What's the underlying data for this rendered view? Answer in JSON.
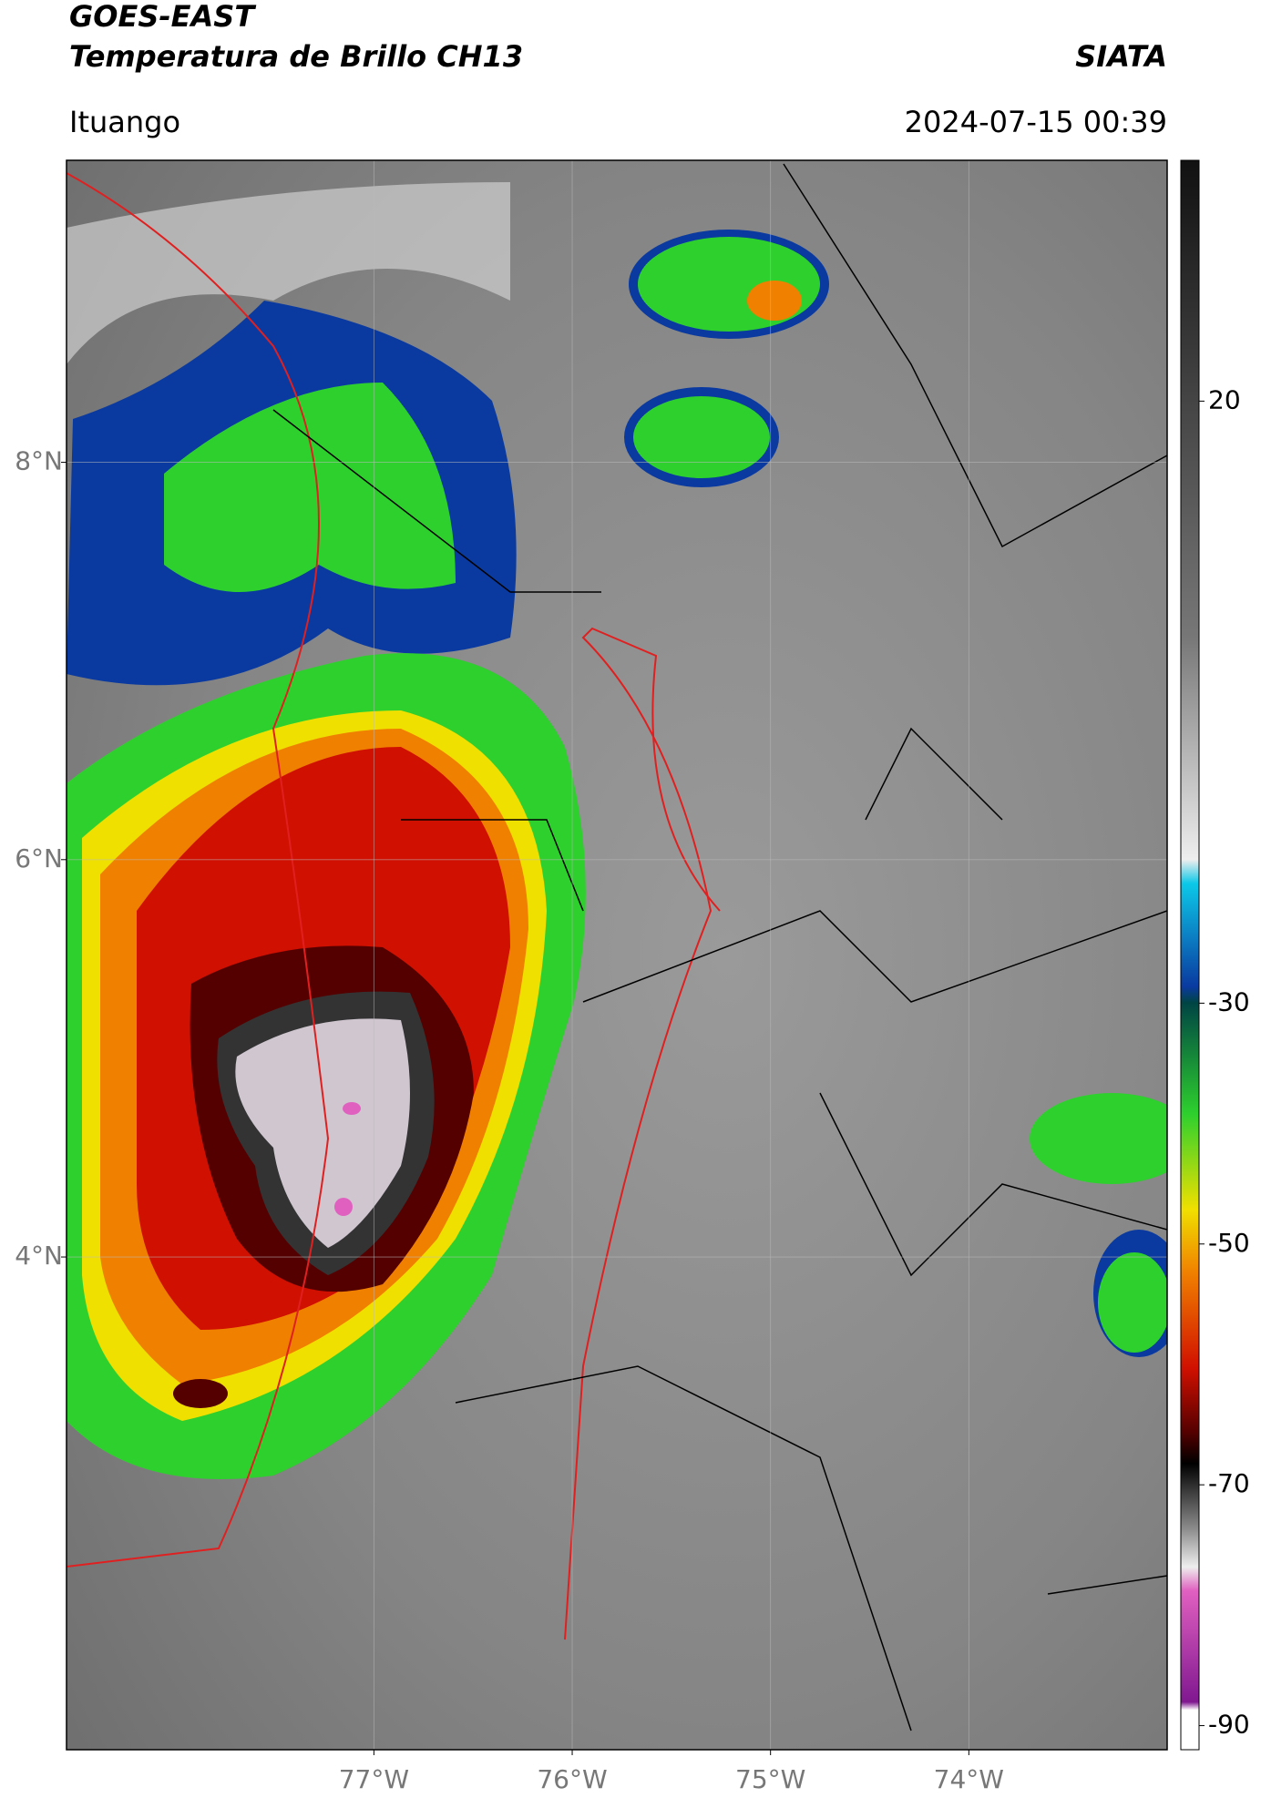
{
  "header": {
    "title": "GOES-EAST",
    "subtitle": "Temperatura de Brillo CH13",
    "source": "SIATA",
    "location": "Ituango",
    "timestamp": "2024-07-15 00:39"
  },
  "map": {
    "xlim": [
      -78.55,
      -73.0
    ],
    "ylim": [
      1.52,
      9.52
    ],
    "xticks": [
      {
        "value": -77,
        "label": "77°W"
      },
      {
        "value": -76,
        "label": "76°W"
      },
      {
        "value": -75,
        "label": "75°W"
      },
      {
        "value": -74,
        "label": "74°W"
      }
    ],
    "yticks": [
      {
        "value": 4,
        "label": "4°N"
      },
      {
        "value": 6,
        "label": "6°N"
      },
      {
        "value": 8,
        "label": "8°N"
      }
    ],
    "grid": true
  },
  "colorbar": {
    "clim": [
      -92,
      40
    ],
    "ticks": [
      20,
      -30,
      -50,
      -70,
      -90
    ]
  }
}
